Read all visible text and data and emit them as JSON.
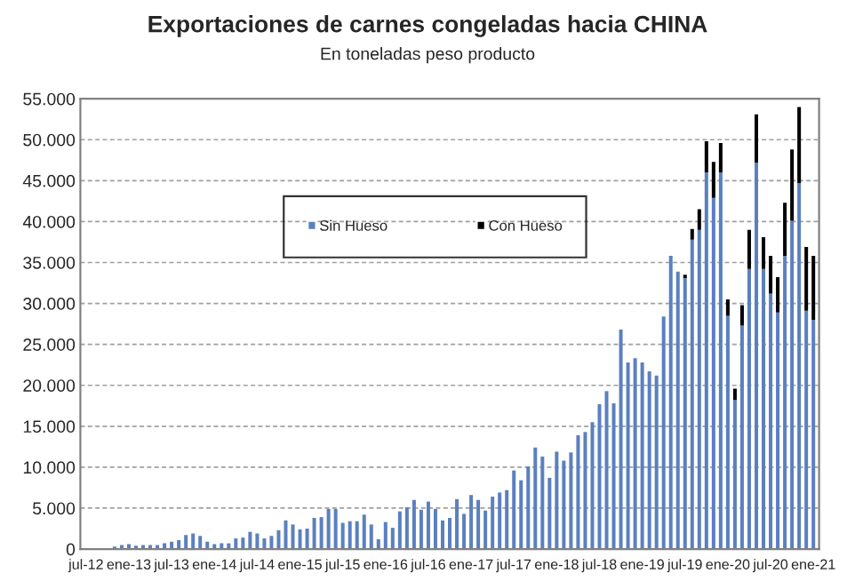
{
  "chart_data": {
    "type": "bar",
    "stacked": true,
    "title": "Exportaciones de carnes congeladas hacia CHINA",
    "subtitle": "En toneladas peso producto",
    "categories": [
      "jul-12",
      null,
      null,
      null,
      null,
      null,
      "ene-13",
      null,
      null,
      null,
      null,
      null,
      "jul-13",
      null,
      null,
      null,
      null,
      null,
      "ene-14",
      null,
      null,
      null,
      null,
      null,
      "jul-14",
      null,
      null,
      null,
      null,
      null,
      "ene-15",
      null,
      null,
      null,
      null,
      null,
      "jul-15",
      null,
      null,
      null,
      null,
      null,
      "ene-16",
      null,
      null,
      null,
      null,
      null,
      "jul-16",
      null,
      null,
      null,
      null,
      null,
      "ene-17",
      null,
      null,
      null,
      null,
      null,
      "jul-17",
      null,
      null,
      null,
      null,
      null,
      "ene-18",
      null,
      null,
      null,
      null,
      null,
      "jul-18",
      null,
      null,
      null,
      null,
      null,
      "ene-19",
      null,
      null,
      null,
      null,
      null,
      "jul-19",
      null,
      null,
      null,
      null,
      null,
      "ene-20",
      null,
      null,
      null,
      null,
      null,
      "jul-20",
      null,
      null,
      null,
      null,
      null,
      "ene-21"
    ],
    "series": [
      {
        "name": "Sin Hueso",
        "color": "#5b80c0",
        "values": [
          0,
          0,
          0,
          0,
          300,
          500,
          600,
          400,
          500,
          500,
          500,
          700,
          900,
          1100,
          1700,
          1900,
          1600,
          900,
          600,
          700,
          700,
          1300,
          1400,
          2100,
          1900,
          1300,
          1600,
          2300,
          3500,
          3000,
          2400,
          2500,
          3800,
          3900,
          4900,
          4900,
          3200,
          3400,
          3400,
          4200,
          3000,
          1200,
          3300,
          2600,
          4600,
          5100,
          6000,
          4800,
          5800,
          4900,
          3500,
          3800,
          6100,
          4300,
          6600,
          6000,
          4700,
          6400,
          6900,
          7200,
          9600,
          8400,
          10100,
          12400,
          11300,
          8700,
          11900,
          10800,
          11800,
          13900,
          14300,
          15500,
          17700,
          19300,
          17800,
          26800,
          22800,
          23300,
          22800,
          21700,
          21200,
          28400,
          35800,
          33900,
          33100,
          37800,
          39000,
          46000,
          42900,
          46000,
          28500,
          18200,
          27300,
          34200,
          47200,
          34200,
          31200,
          28900,
          35800,
          40100,
          44700,
          29100,
          28000
        ]
      },
      {
        "name": "Con Hueso",
        "color": "#000000",
        "values": [
          0,
          0,
          0,
          0,
          0,
          0,
          0,
          0,
          0,
          0,
          0,
          0,
          0,
          0,
          0,
          0,
          0,
          0,
          0,
          0,
          0,
          0,
          0,
          0,
          0,
          0,
          0,
          0,
          0,
          0,
          0,
          0,
          0,
          0,
          0,
          0,
          0,
          0,
          0,
          0,
          0,
          0,
          0,
          0,
          0,
          0,
          0,
          0,
          0,
          0,
          0,
          0,
          0,
          0,
          0,
          0,
          0,
          0,
          0,
          0,
          0,
          0,
          0,
          0,
          0,
          0,
          0,
          0,
          0,
          0,
          0,
          0,
          0,
          0,
          0,
          0,
          0,
          0,
          0,
          0,
          0,
          0,
          0,
          0,
          400,
          1300,
          2500,
          3800,
          4400,
          3600,
          2000,
          1400,
          2500,
          4800,
          5900,
          3900,
          4600,
          4300,
          6500,
          8700,
          9300,
          7800,
          7800
        ]
      }
    ],
    "ylim": [
      0,
      55000
    ],
    "yticks": [
      {
        "value": 0,
        "label": "0"
      },
      {
        "value": 5000,
        "label": "5.000"
      },
      {
        "value": 10000,
        "label": "10.000"
      },
      {
        "value": 15000,
        "label": "15.000"
      },
      {
        "value": 20000,
        "label": "20.000"
      },
      {
        "value": 25000,
        "label": "25.000"
      },
      {
        "value": 30000,
        "label": "30.000"
      },
      {
        "value": 35000,
        "label": "35.000"
      },
      {
        "value": 40000,
        "label": "40.000"
      },
      {
        "value": 45000,
        "label": "45.000"
      },
      {
        "value": 50000,
        "label": "50.000"
      },
      {
        "value": 55000,
        "label": "55.000"
      }
    ],
    "grid": "y",
    "legend": "top"
  }
}
